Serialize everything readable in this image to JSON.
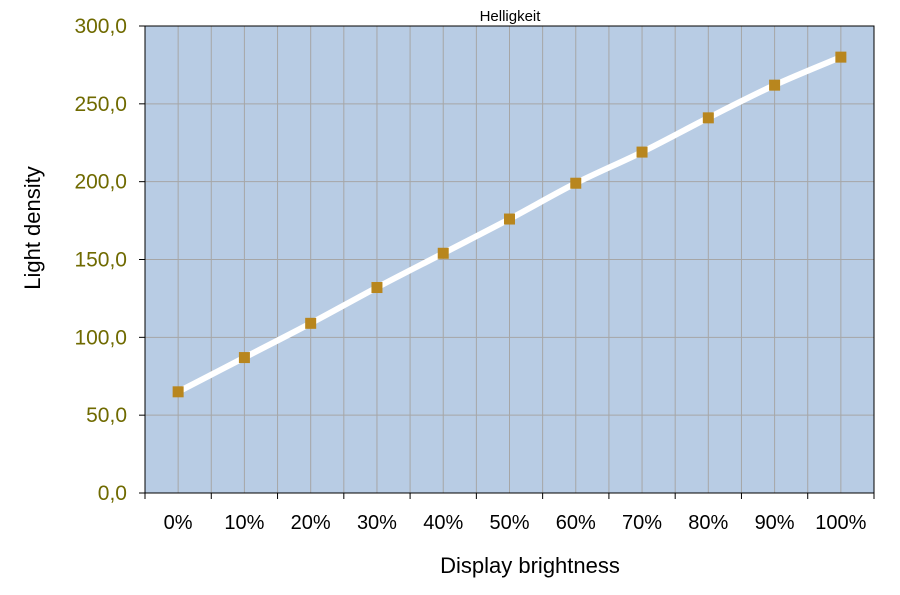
{
  "chart_data": {
    "type": "line",
    "title": "Helligkeit",
    "xlabel": "Display brightness",
    "ylabel": "Light density",
    "categories": [
      "0%",
      "10%",
      "20%",
      "30%",
      "40%",
      "50%",
      "60%",
      "70%",
      "80%",
      "90%",
      "100%"
    ],
    "series": [
      {
        "values": [
          65,
          87,
          109,
          132,
          154,
          176,
          199,
          219,
          241,
          262,
          280
        ]
      }
    ],
    "ylim": [
      0,
      300
    ],
    "yticks": [
      "0,0",
      "50,0",
      "100,0",
      "150,0",
      "200,0",
      "250,0",
      "300,0"
    ],
    "grid": true,
    "legend": "none",
    "colors": {
      "plot_background": "#b8cce4",
      "gridline": "#a6a6a6",
      "line": "#ffffff",
      "marker": "#b8861e",
      "ytick_text": "#6f6a00"
    }
  }
}
